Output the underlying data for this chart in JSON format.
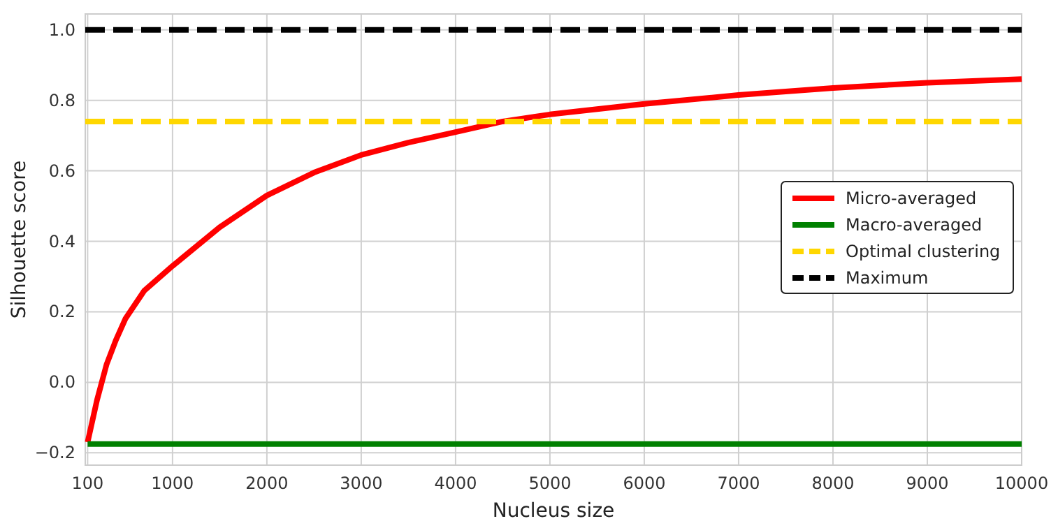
{
  "chart_data": {
    "type": "line",
    "xlabel": "Nucleus size",
    "ylabel": "Silhouette score",
    "xlim": [
      75,
      10000
    ],
    "ylim": [
      -0.235,
      1.045
    ],
    "xticks": [
      100,
      1000,
      2000,
      3000,
      4000,
      5000,
      6000,
      7000,
      8000,
      9000,
      10000
    ],
    "yticks": [
      {
        "value": -0.2,
        "label": "−0.2"
      },
      {
        "value": 0,
        "label": "0.0"
      },
      {
        "value": 0.2,
        "label": "0.2"
      },
      {
        "value": 0.4,
        "label": "0.4"
      },
      {
        "value": 0.6,
        "label": "0.6"
      },
      {
        "value": 0.8,
        "label": "0.8"
      },
      {
        "value": 1,
        "label": "1.0"
      }
    ],
    "grid": true,
    "legend": "right",
    "line_style": "solid",
    "series": [
      {
        "name": "Micro-averaged",
        "color": "#ff0000",
        "x": [
          100,
          200,
          300,
          400,
          500,
          700,
          1000,
          1500,
          2000,
          2500,
          3000,
          3500,
          4000,
          4500,
          5000,
          6000,
          7000,
          8000,
          9000,
          10000
        ],
        "values": [
          -0.17,
          -0.05,
          0.05,
          0.12,
          0.18,
          0.26,
          0.33,
          0.44,
          0.53,
          0.595,
          0.645,
          0.68,
          0.71,
          0.74,
          0.76,
          0.79,
          0.815,
          0.835,
          0.85,
          0.86
        ]
      },
      {
        "name": "Macro-averaged",
        "color": "#008000",
        "x": [
          100,
          1000,
          2000,
          3000,
          4000,
          5000,
          6000,
          7000,
          8000,
          9000,
          10000
        ],
        "values": [
          -0.175,
          -0.175,
          -0.175,
          -0.175,
          -0.175,
          -0.175,
          -0.175,
          -0.175,
          -0.175,
          -0.175,
          -0.175
        ]
      },
      {
        "name": "Optimal clustering",
        "color": "#ffd700",
        "line_style": "dashed",
        "x": [
          75,
          10000
        ],
        "values": [
          0.74,
          0.74
        ]
      },
      {
        "name": "Maximum",
        "color": "#000000",
        "line_style": "dashed",
        "x": [
          75,
          10000
        ],
        "values": [
          1.0,
          1.0
        ]
      }
    ]
  }
}
